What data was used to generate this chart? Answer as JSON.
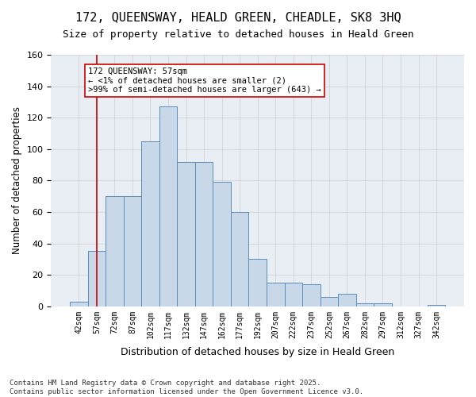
{
  "title_line1": "172, QUEENSWAY, HEALD GREEN, CHEADLE, SK8 3HQ",
  "title_line2": "Size of property relative to detached houses in Heald Green",
  "xlabel": "Distribution of detached houses by size in Heald Green",
  "ylabel": "Number of detached properties",
  "bar_color": "#c8d8e8",
  "bar_edge_color": "#5b8db8",
  "annotation_box_color": "#ffffff",
  "annotation_box_edge": "#cc0000",
  "vline_color": "#cc0000",
  "background_color": "#ffffff",
  "plot_bg_color": "#e8eef4",
  "grid_color": "#cccccc",
  "footer_text": "Contains HM Land Registry data © Crown copyright and database right 2025.\nContains public sector information licensed under the Open Government Licence v3.0.",
  "annotation_text": "172 QUEENSWAY: 57sqm\n← <1% of detached houses are smaller (2)\n>99% of semi-detached houses are larger (643) →",
  "vline_x": 1,
  "categories": [
    "42sqm",
    "57sqm",
    "72sqm",
    "87sqm",
    "102sqm",
    "117sqm",
    "132sqm",
    "147sqm",
    "162sqm",
    "177sqm",
    "192sqm",
    "207sqm",
    "222sqm",
    "237sqm",
    "252sqm",
    "267sqm",
    "282sqm",
    "297sqm",
    "312sqm",
    "327sqm",
    "342sqm"
  ],
  "values": [
    3,
    35,
    70,
    70,
    105,
    127,
    92,
    92,
    79,
    60,
    30,
    15,
    15,
    14,
    6,
    8,
    2,
    2,
    0,
    0,
    1
  ],
  "ylim": [
    0,
    160
  ],
  "yticks": [
    0,
    20,
    40,
    60,
    80,
    100,
    120,
    140,
    160
  ]
}
